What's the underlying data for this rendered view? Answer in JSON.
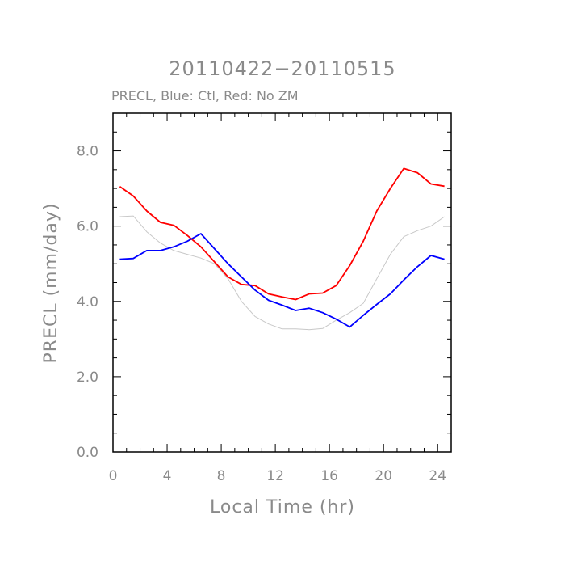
{
  "chart_data": {
    "type": "line",
    "title": "20110422−20110515",
    "subtitle": "PRECL, Blue: Ctl, Red: No ZM",
    "xlabel": "Local Time (hr)",
    "ylabel": "PRECL (mm/day)",
    "xlim": [
      0,
      25
    ],
    "ylim": [
      0,
      9
    ],
    "x_ticks": [
      0,
      4,
      8,
      12,
      16,
      20,
      24
    ],
    "x_tick_labels": [
      "0",
      "4",
      "8",
      "12",
      "16",
      "20",
      "24"
    ],
    "y_ticks": [
      0,
      2,
      4,
      6,
      8
    ],
    "y_tick_labels": [
      "0.0",
      "2.0",
      "4.0",
      "6.0",
      "8.0"
    ],
    "grid": false,
    "x": [
      0.5,
      1.5,
      2.5,
      3.5,
      4.5,
      5.5,
      6.5,
      7.5,
      8.5,
      9.5,
      10.5,
      11.5,
      12.5,
      13.5,
      14.5,
      15.5,
      16.5,
      17.5,
      18.5,
      19.5,
      20.5,
      21.5,
      22.5,
      23.5,
      24.5
    ],
    "series": [
      {
        "color": "#c8c8c8",
        "values": [
          6.25,
          6.27,
          5.85,
          5.55,
          5.35,
          5.25,
          5.15,
          5.0,
          4.6,
          4.0,
          3.6,
          3.4,
          3.27,
          3.27,
          3.25,
          3.28,
          3.5,
          3.7,
          3.95,
          4.6,
          5.25,
          5.72,
          5.88,
          6.0,
          6.25
        ]
      },
      {
        "color": "#ff0000",
        "values": [
          7.05,
          6.8,
          6.4,
          6.1,
          6.02,
          5.75,
          5.45,
          5.05,
          4.65,
          4.45,
          4.42,
          4.2,
          4.12,
          4.05,
          4.2,
          4.22,
          4.42,
          4.95,
          5.6,
          6.4,
          7.0,
          7.53,
          7.42,
          7.12,
          7.06
        ]
      },
      {
        "color": "#0000ff",
        "values": [
          5.12,
          5.14,
          5.35,
          5.35,
          5.45,
          5.6,
          5.8,
          5.4,
          5.0,
          4.65,
          4.3,
          4.03,
          3.9,
          3.76,
          3.82,
          3.7,
          3.53,
          3.32,
          3.63,
          3.92,
          4.2,
          4.57,
          4.92,
          5.22,
          5.12
        ]
      }
    ]
  }
}
